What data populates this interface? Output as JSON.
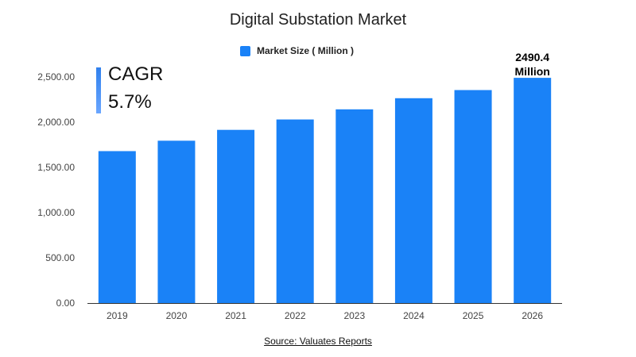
{
  "chart_data": {
    "type": "bar",
    "title": "Digital Substation Market",
    "categories": [
      "2019",
      "2020",
      "2021",
      "2022",
      "2023",
      "2024",
      "2025",
      "2026"
    ],
    "series": [
      {
        "name": "Market Size ( Million )",
        "values": [
          1680,
          1795,
          1915,
          2030,
          2142,
          2265,
          2355,
          2490.4
        ]
      }
    ],
    "ylim": [
      0,
      2500
    ],
    "yticks": [
      "0.00",
      "500.00",
      "1,000.00",
      "1,500.00",
      "2,000.00",
      "2,500.00"
    ],
    "ytick_values": [
      0,
      500,
      1000,
      1500,
      2000,
      2500
    ],
    "grid": false,
    "legend_position": "top-center",
    "bar_color": "#1a82f7",
    "data_labels": [
      {
        "category": "2026",
        "line1": "2490.4",
        "line2": "Million"
      }
    ],
    "annotation": {
      "label": "CAGR",
      "value": "5.7%"
    },
    "source": "Source: Valuates Reports"
  }
}
